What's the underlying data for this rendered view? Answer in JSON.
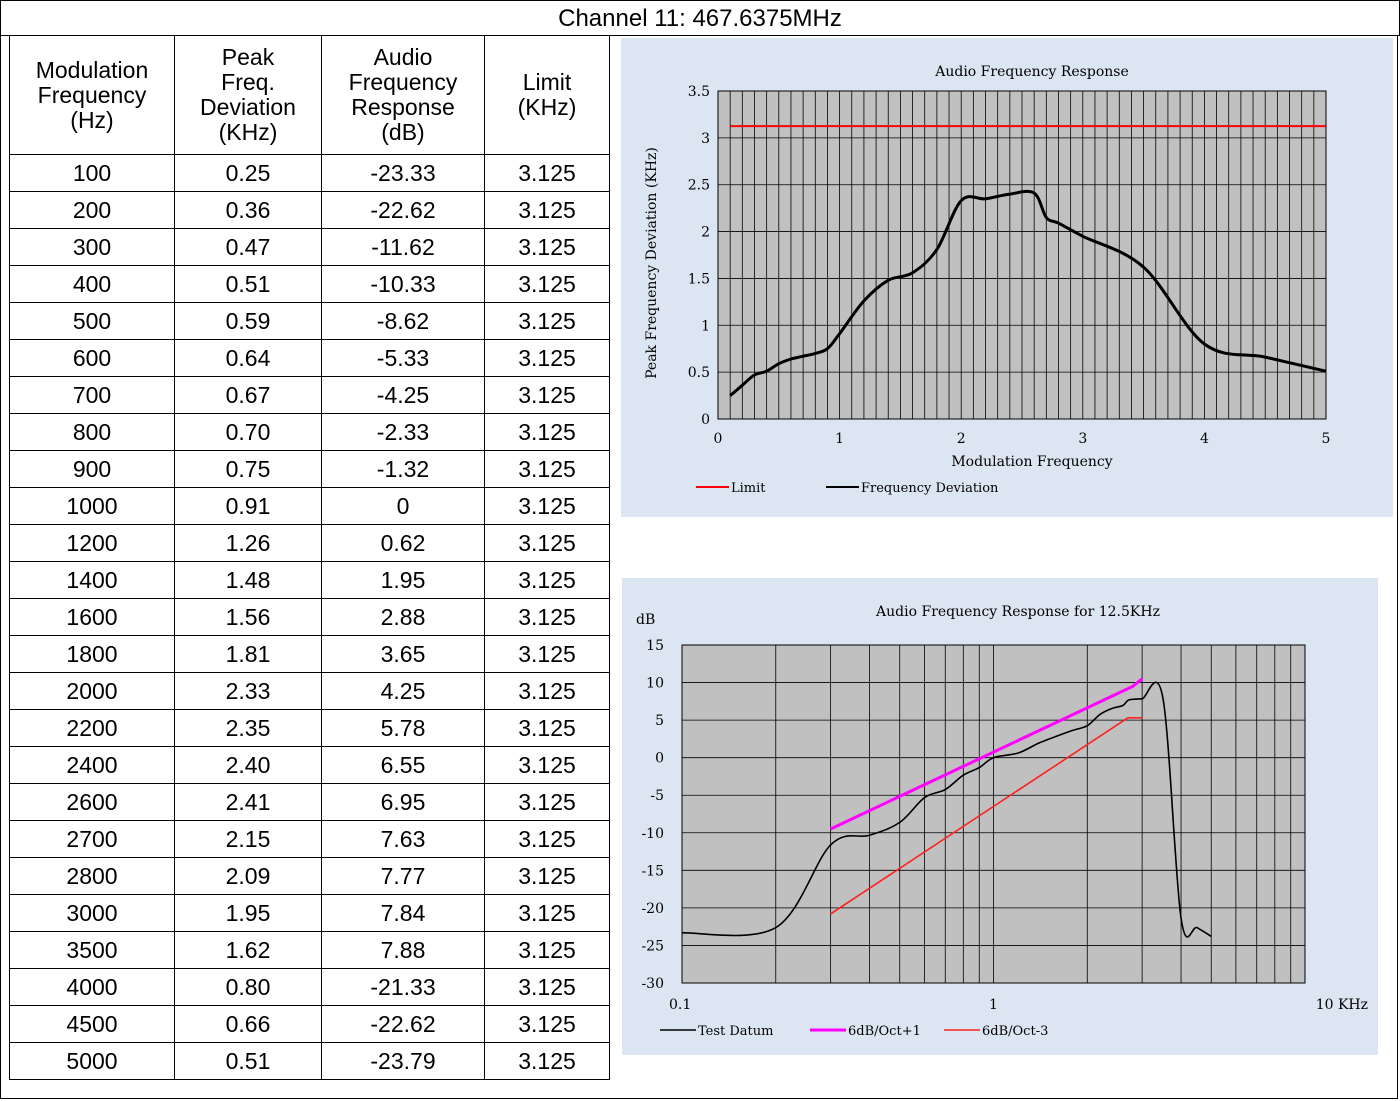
{
  "page_title": "Channel 11: 467.6375MHz",
  "table": {
    "headers": [
      "Modulation Frequency (Hz)",
      "Peak Freq. Deviation (KHz)",
      "Audio Frequency Response (dB)",
      "Limit (KHz)"
    ],
    "rows": [
      [
        "100",
        "0.25",
        "-23.33",
        "3.125"
      ],
      [
        "200",
        "0.36",
        "-22.62",
        "3.125"
      ],
      [
        "300",
        "0.47",
        "-11.62",
        "3.125"
      ],
      [
        "400",
        "0.51",
        "-10.33",
        "3.125"
      ],
      [
        "500",
        "0.59",
        "-8.62",
        "3.125"
      ],
      [
        "600",
        "0.64",
        "-5.33",
        "3.125"
      ],
      [
        "700",
        "0.67",
        "-4.25",
        "3.125"
      ],
      [
        "800",
        "0.70",
        "-2.33",
        "3.125"
      ],
      [
        "900",
        "0.75",
        "-1.32",
        "3.125"
      ],
      [
        "1000",
        "0.91",
        "0",
        "3.125"
      ],
      [
        "1200",
        "1.26",
        "0.62",
        "3.125"
      ],
      [
        "1400",
        "1.48",
        "1.95",
        "3.125"
      ],
      [
        "1600",
        "1.56",
        "2.88",
        "3.125"
      ],
      [
        "1800",
        "1.81",
        "3.65",
        "3.125"
      ],
      [
        "2000",
        "2.33",
        "4.25",
        "3.125"
      ],
      [
        "2200",
        "2.35",
        "5.78",
        "3.125"
      ],
      [
        "2400",
        "2.40",
        "6.55",
        "3.125"
      ],
      [
        "2600",
        "2.41",
        "6.95",
        "3.125"
      ],
      [
        "2700",
        "2.15",
        "7.63",
        "3.125"
      ],
      [
        "2800",
        "2.09",
        "7.77",
        "3.125"
      ],
      [
        "3000",
        "1.95",
        "7.84",
        "3.125"
      ],
      [
        "3500",
        "1.62",
        "7.88",
        "3.125"
      ],
      [
        "4000",
        "0.80",
        "-21.33",
        "3.125"
      ],
      [
        "4500",
        "0.66",
        "-22.62",
        "3.125"
      ],
      [
        "5000",
        "0.51",
        "-23.79",
        "3.125"
      ]
    ]
  },
  "chart_data": [
    {
      "type": "line",
      "title": "Audio Frequency Response",
      "xlabel": "Modulation Frequency",
      "ylabel": "Peak Frequency Deviation (KHz)",
      "xlim": [
        0,
        5
      ],
      "ylim": [
        0,
        3.5
      ],
      "x_ticks": [
        "0",
        "1",
        "2",
        "3",
        "4",
        "5"
      ],
      "y_ticks": [
        "0",
        "0.5",
        "1",
        "1.5",
        "2",
        "2.5",
        "3",
        "3.5"
      ],
      "grid": true,
      "legend_position": "bottom-left",
      "series": [
        {
          "name": "Limit",
          "color": "#ff0000",
          "points": [
            [
              0.1,
              3.125
            ],
            [
              5.0,
              3.125
            ]
          ]
        },
        {
          "name": "Frequency Deviation",
          "color": "#000000",
          "points": [
            [
              0.1,
              0.25
            ],
            [
              0.2,
              0.36
            ],
            [
              0.3,
              0.47
            ],
            [
              0.4,
              0.51
            ],
            [
              0.5,
              0.59
            ],
            [
              0.6,
              0.64
            ],
            [
              0.7,
              0.67
            ],
            [
              0.8,
              0.7
            ],
            [
              0.9,
              0.75
            ],
            [
              1.0,
              0.91
            ],
            [
              1.2,
              1.26
            ],
            [
              1.4,
              1.48
            ],
            [
              1.6,
              1.56
            ],
            [
              1.8,
              1.81
            ],
            [
              2.0,
              2.33
            ],
            [
              2.2,
              2.35
            ],
            [
              2.4,
              2.4
            ],
            [
              2.6,
              2.41
            ],
            [
              2.7,
              2.15
            ],
            [
              2.8,
              2.09
            ],
            [
              3.0,
              1.95
            ],
            [
              3.5,
              1.62
            ],
            [
              4.0,
              0.8
            ],
            [
              4.5,
              0.66
            ],
            [
              5.0,
              0.51
            ]
          ]
        }
      ]
    },
    {
      "type": "line",
      "title": "Audio Frequency Response for 12.5KHz",
      "ylabel": "dB",
      "x_scale": "log",
      "xlim": [
        0.1,
        10
      ],
      "ylim": [
        -30,
        15
      ],
      "x_ticks": [
        "0.1",
        "1",
        "10 KHz"
      ],
      "y_ticks": [
        "-30",
        "-25",
        "-20",
        "-15",
        "-10",
        "-5",
        "0",
        "5",
        "10",
        "15"
      ],
      "grid": true,
      "legend_position": "bottom-left",
      "series": [
        {
          "name": "Test Datum",
          "color": "#000000",
          "points": [
            [
              0.1,
              -23.33
            ],
            [
              0.2,
              -22.62
            ],
            [
              0.3,
              -11.62
            ],
            [
              0.4,
              -10.33
            ],
            [
              0.5,
              -8.62
            ],
            [
              0.6,
              -5.33
            ],
            [
              0.7,
              -4.25
            ],
            [
              0.8,
              -2.33
            ],
            [
              0.9,
              -1.32
            ],
            [
              1.0,
              0.0
            ],
            [
              1.2,
              0.62
            ],
            [
              1.4,
              1.95
            ],
            [
              1.6,
              2.88
            ],
            [
              1.8,
              3.65
            ],
            [
              2.0,
              4.25
            ],
            [
              2.2,
              5.78
            ],
            [
              2.4,
              6.55
            ],
            [
              2.6,
              6.95
            ],
            [
              2.7,
              7.63
            ],
            [
              2.8,
              7.77
            ],
            [
              3.0,
              7.84
            ],
            [
              3.5,
              7.88
            ],
            [
              4.0,
              -21.33
            ],
            [
              4.5,
              -22.62
            ],
            [
              5.0,
              -23.79
            ]
          ]
        },
        {
          "name": "6dB/Oct+1",
          "color": "#ff00ff",
          "points": [
            [
              0.3,
              -9.5
            ],
            [
              2.8,
              9.5
            ],
            [
              3.0,
              10.5
            ]
          ]
        },
        {
          "name": "6dB/Oct-3",
          "color": "#ff2020",
          "points": [
            [
              0.3,
              -20.8
            ],
            [
              2.7,
              5.3
            ],
            [
              3.0,
              5.3
            ]
          ]
        }
      ]
    }
  ]
}
